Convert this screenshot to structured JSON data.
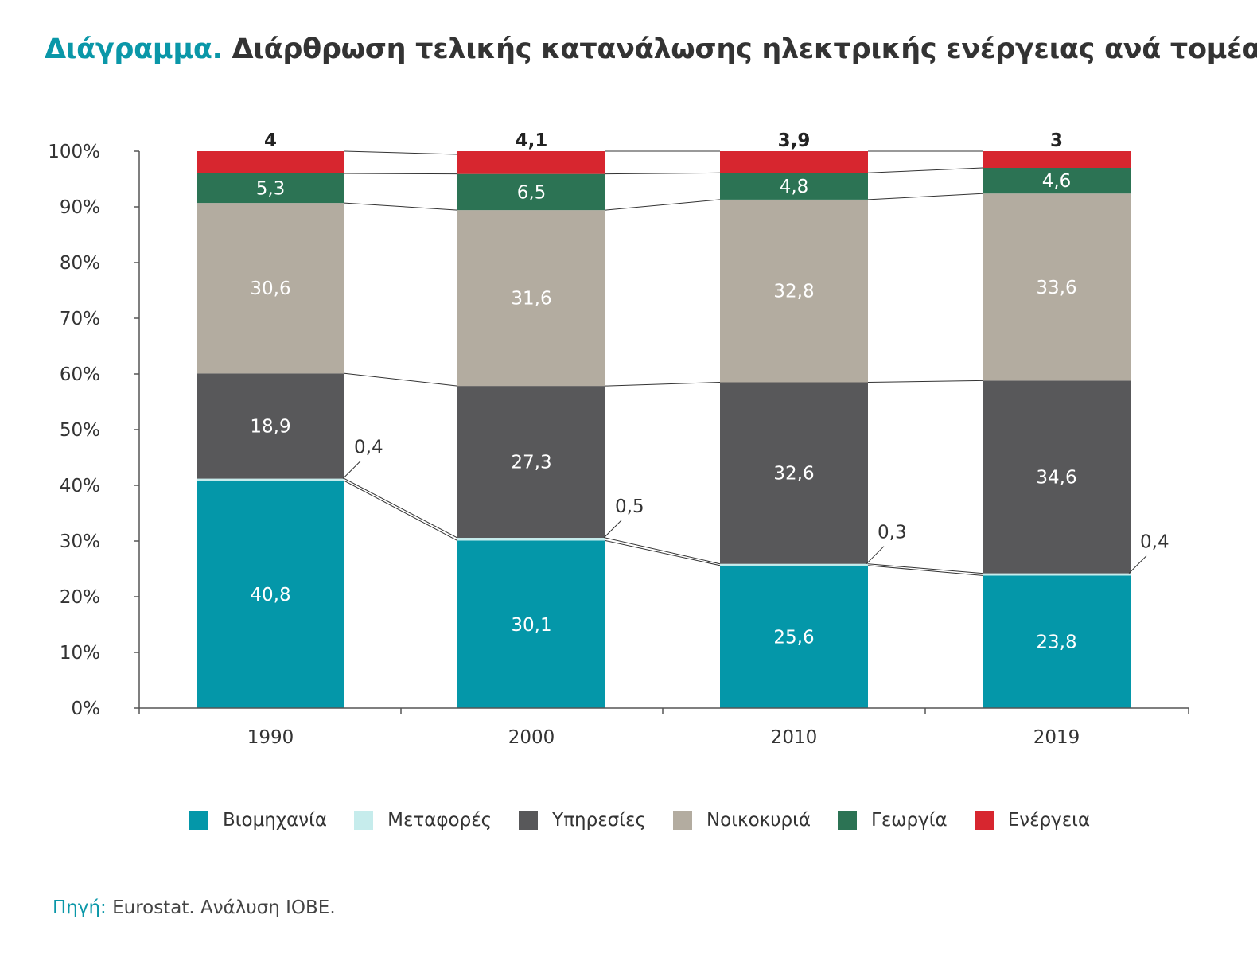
{
  "title": {
    "lead": "Διάγραμμα.",
    "text": "Διάρθρωση τελικής κατανάλωσης ηλεκτρικής ενέργειας ανά τομέα"
  },
  "source": {
    "lead": "Πηγή:",
    "text": "Eurostat. Ανάλυση ΙΟΒΕ."
  },
  "chart_data": {
    "type": "bar",
    "stacked": true,
    "categories": [
      "1990",
      "2000",
      "2010",
      "2019"
    ],
    "ylim": [
      0,
      100
    ],
    "yticks": [
      "0%",
      "10%",
      "20%",
      "30%",
      "40%",
      "50%",
      "60%",
      "70%",
      "80%",
      "90%",
      "100%"
    ],
    "grid": false,
    "legend_position": "bottom",
    "series": [
      {
        "name": "Βιομηχανία",
        "color": "#0497a9",
        "values": [
          40.8,
          30.1,
          25.6,
          23.8
        ],
        "labels": [
          "40,8",
          "30,1",
          "25,6",
          "23,8"
        ]
      },
      {
        "name": "Μεταφορές",
        "color": "#c6ecec",
        "values": [
          0.4,
          0.5,
          0.3,
          0.4
        ],
        "labels": [
          "0,4",
          "0,5",
          "0,3",
          "0,4"
        ]
      },
      {
        "name": "Υπηρεσίες",
        "color": "#58585a",
        "values": [
          18.9,
          27.3,
          32.6,
          34.6
        ],
        "labels": [
          "18,9",
          "27,3",
          "32,6",
          "34,6"
        ]
      },
      {
        "name": "Νοικοκυριά",
        "color": "#b3aca0",
        "values": [
          30.6,
          31.6,
          32.8,
          33.6
        ],
        "labels": [
          "30,6",
          "31,6",
          "32,8",
          "33,6"
        ]
      },
      {
        "name": "Γεωργία",
        "color": "#2c7354",
        "values": [
          5.3,
          6.5,
          4.8,
          4.6
        ],
        "labels": [
          "5,3",
          "6,5",
          "4,8",
          "4,6"
        ]
      },
      {
        "name": "Ενέργεια",
        "color": "#d7262f",
        "values": [
          4,
          4.1,
          3.9,
          3
        ],
        "labels": [
          "4",
          "4,1",
          "3,9",
          "3"
        ]
      }
    ]
  }
}
